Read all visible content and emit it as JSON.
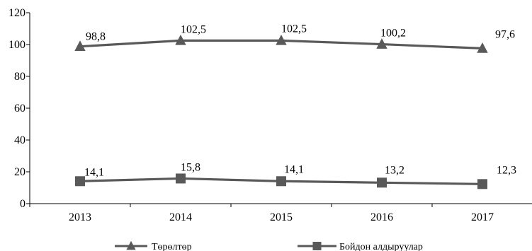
{
  "chart_data": {
    "type": "line",
    "categories": [
      "2013",
      "2014",
      "2015",
      "2016",
      "2017"
    ],
    "ylim": [
      0,
      120
    ],
    "yticks": [
      0,
      20,
      40,
      60,
      80,
      100,
      120
    ],
    "grid": false,
    "legend_position": "bottom",
    "series": [
      {
        "name": "Төрөлтөр",
        "marker": "triangle",
        "color": "#595959",
        "values": [
          98.8,
          102.5,
          102.5,
          100.2,
          97.6
        ],
        "labels": [
          "98,8",
          "102,5",
          "102,5",
          "100,2",
          "97,6"
        ]
      },
      {
        "name": "Бойдон алдыруулар",
        "marker": "square",
        "color": "#595959",
        "values": [
          14.1,
          15.8,
          14.1,
          13.2,
          12.3
        ],
        "labels": [
          "14,1",
          "15,8",
          "14,1",
          "13,2",
          "12,3"
        ]
      }
    ]
  }
}
